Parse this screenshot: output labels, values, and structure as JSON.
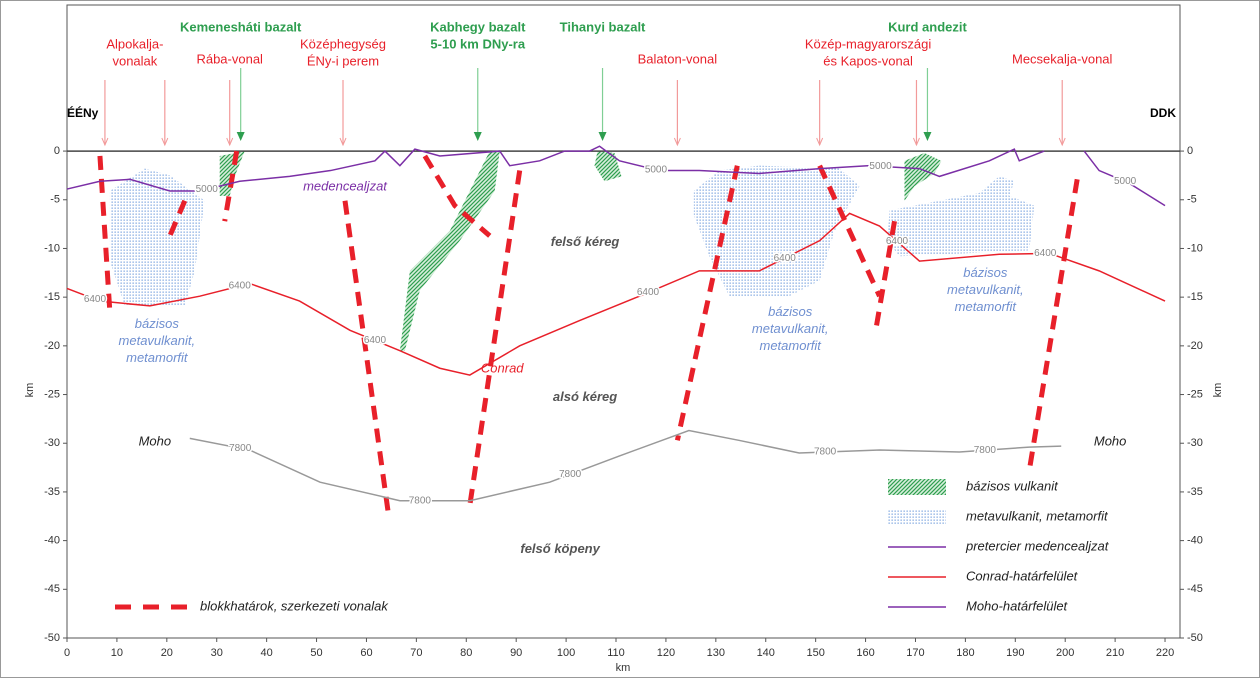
{
  "chart_data": {
    "type": "cross-section",
    "x_label": "km",
    "y_label": "km",
    "left_end": "ÉÉNy",
    "right_end": "DDK",
    "xlim": [
      0,
      223
    ],
    "ylim": [
      -50,
      15
    ],
    "xticks": [
      0,
      10,
      20,
      30,
      40,
      50,
      60,
      70,
      80,
      90,
      100,
      110,
      120,
      130,
      140,
      150,
      160,
      170,
      180,
      190,
      200,
      210,
      220
    ],
    "yticks": [
      0,
      -5,
      -10,
      -15,
      -20,
      -25,
      -30,
      -35,
      -40,
      -45,
      -50
    ],
    "structure_color": "#e8202a",
    "volcanic_color": "#2e9e4f",
    "structures": [
      {
        "text": [
          "Alpokalja-",
          "vonalak"
        ],
        "x": [
          7.6,
          19.6
        ]
      },
      {
        "text": [
          "Rába-vonal"
        ],
        "x": [
          32.6
        ]
      },
      {
        "text": [
          "Középhegység",
          "ÉNy-i perem"
        ],
        "x": [
          55.3
        ]
      },
      {
        "text": [
          "Balaton-vonal"
        ],
        "x": [
          122.3
        ]
      },
      {
        "text": [
          "Közép-magyarországi",
          "és Kapos-vonal"
        ],
        "x": [
          150.8,
          170.2
        ]
      },
      {
        "text": [
          "Mecsekalja-vonal"
        ],
        "x": [
          199.4
        ]
      }
    ],
    "volcanics": [
      {
        "text": [
          "Kemenesháti bazalt"
        ],
        "x": [
          34.8
        ]
      },
      {
        "text": [
          "Kabhegy bazalt",
          "5-10 km DNy-ra"
        ],
        "x": [
          82.3
        ]
      },
      {
        "text": [
          "Tihanyi bazalt"
        ],
        "x": [
          107.3
        ]
      },
      {
        "text": [
          "Kurd andezit"
        ],
        "x": [
          172.4
        ]
      }
    ],
    "regions": [
      {
        "name": "bázisos vulkanit",
        "color": "#2e9e4f",
        "pattern": "hatch",
        "polygons": [
          {
            "x": [
              30.6,
              35.6,
              33.6,
              32.6,
              30.6
            ],
            "y": [
              -0.5,
              0,
              -2.6,
              -4.6,
              -4.6
            ]
          },
          {
            "x": [
              66.7,
              68.7,
              76.7,
              84.7,
              86.7,
              85.7,
              78.7,
              70.7,
              67.7
            ],
            "y": [
              -20.5,
              -12.3,
              -8.2,
              0,
              0,
              -4.1,
              -9.2,
              -14.3,
              -20.5
            ]
          },
          {
            "x": [
              106.3,
              109.7,
              111.1,
              107.7,
              105.7
            ],
            "y": [
              0,
              -0.2,
              -2.6,
              -3.1,
              -1.5
            ]
          },
          {
            "x": [
              167.8,
              171.8,
              175.2,
              173.8,
              169.8,
              167.8
            ],
            "y": [
              -1,
              -0.2,
              -1,
              -2.3,
              -3.6,
              -5.1
            ]
          }
        ]
      },
      {
        "name": "metavulkanit, metamorfit",
        "color": "#7ea6e0",
        "pattern": "dots",
        "polygons": [
          {
            "x": [
              8.6,
              15.6,
              20.6,
              27.6,
              25.6,
              23.6,
              11.6,
              8.6
            ],
            "y": [
              -4.1,
              -1.8,
              -2.5,
              -5.1,
              -12.3,
              -15.9,
              -15.9,
              -11.3
            ]
          },
          {
            "x": [
              125.6,
              130.7,
              138.7,
              154.8,
              158.8,
              153.8,
              150.8,
              144.7,
              132.7,
              128.7,
              125.6
            ],
            "y": [
              -4.1,
              -2,
              -1.5,
              -1.8,
              -3.6,
              -8.2,
              -13.3,
              -14.9,
              -14.9,
              -10.8,
              -6.6
            ]
          },
          {
            "x": [
              164.8,
              182.8,
              186.8,
              189.8,
              188.8,
              193.8,
              192.8,
              166.8,
              164.4
            ],
            "y": [
              -6.1,
              -4.3,
              -2.6,
              -3.1,
              -4.6,
              -5.6,
              -10.2,
              -10.8,
              -9.2
            ]
          }
        ]
      }
    ],
    "series": [
      {
        "name": "pretercier medencealjzat",
        "color": "#7b2fa6",
        "x": [
          0,
          6.6,
          12.6,
          20.6,
          26.6,
          34.6,
          44.6,
          52.8,
          61.7,
          63.7,
          66.7,
          69.7,
          74.7,
          86.7,
          88.7,
          94.7,
          99.7,
          104.7,
          106.7,
          110.7,
          118.7,
          126.7,
          138.7,
          150.8,
          160.8,
          170.8,
          174.8,
          184.8,
          189.8,
          190.8,
          195.8,
          199.8,
          203.8,
          206.8,
          212.8,
          220
        ],
        "values": [
          -3.9,
          -3.1,
          -2.9,
          -4.1,
          -4.1,
          -3.1,
          -2.6,
          -2,
          -1,
          0,
          -1.5,
          0.2,
          -0.5,
          0,
          -1.5,
          -1,
          0,
          0,
          0.5,
          -1,
          -2,
          -2,
          -2.3,
          -1.8,
          -1.5,
          -1.8,
          -2.6,
          -1,
          0.2,
          -1,
          0,
          null,
          0,
          -2,
          -3.3,
          -5.6
        ],
        "labels": [
          {
            "x": 28,
            "text": 5000
          },
          {
            "x": 118,
            "text": 5000
          },
          {
            "x": 163,
            "text": 5000
          },
          {
            "x": 212,
            "text": 5000
          }
        ]
      },
      {
        "name": "Conrad-határfelület",
        "color": "#e8202a",
        "x": [
          0,
          6.6,
          16.6,
          26.6,
          36.6,
          46.6,
          56.7,
          66.7,
          74.7,
          80.7,
          90.7,
          102.7,
          114.7,
          126.7,
          138.7,
          150.8,
          156.8,
          162.8,
          170.8,
          186.8,
          196.8,
          206.8,
          220
        ],
        "values": [
          -14.1,
          -15.4,
          -15.9,
          -14.9,
          -13.6,
          -15.4,
          -18.4,
          -20.5,
          -22.3,
          -23,
          -20,
          -17.4,
          -14.9,
          -12.3,
          -12.3,
          -9.2,
          -6.4,
          -7.7,
          -11.3,
          -10.6,
          -10.5,
          -12.3,
          -15.4
        ],
        "labels": [
          {
            "x": 5.6,
            "text": 6400
          },
          {
            "x": 34.6,
            "text": 6400
          },
          {
            "x": 61.7,
            "text": 6400
          },
          {
            "x": 116.4,
            "text": 6400
          },
          {
            "x": 143.8,
            "text": 6400
          },
          {
            "x": 166.3,
            "text": 6400
          },
          {
            "x": 196,
            "text": 6400
          }
        ]
      },
      {
        "name": "Moho-határfelület",
        "color": "#999999",
        "legend_color": "#7b2fa6",
        "x": [
          24.6,
          36.6,
          50.7,
          66.7,
          80.7,
          96.7,
          110.7,
          124.6,
          134.6,
          146.7,
          162.8,
          178.8,
          192.8,
          199.2
        ],
        "values": [
          -29.5,
          -30.7,
          -34,
          -35.9,
          -35.9,
          -34,
          -31.3,
          -28.7,
          -29.7,
          -31,
          -30.7,
          -30.9,
          -30.4,
          -30.3
        ],
        "labels": [
          {
            "x": 34.7,
            "text": 7800
          },
          {
            "x": 70.7,
            "text": 7800
          },
          {
            "x": 100.8,
            "text": 7800
          },
          {
            "x": 151.9,
            "text": 7800
          },
          {
            "x": 183.9,
            "text": 7800
          }
        ]
      }
    ],
    "faults": {
      "name": "blokkhatárok, szerkezeti vonalak",
      "color": "#e8202a",
      "lines": [
        {
          "x": [
            6.6,
            8.6
          ],
          "y": [
            -0.5,
            -16.6
          ]
        },
        {
          "x": [
            23.6,
            20.2
          ],
          "y": [
            -5.1,
            -9.2
          ]
        },
        {
          "x": [
            34,
            31.6
          ],
          "y": [
            0,
            -7.2
          ]
        },
        {
          "x": [
            55.7,
            64.3
          ],
          "y": [
            -5.1,
            -36.9
          ]
        },
        {
          "x": [
            71.7,
            77.7,
            84.7
          ],
          "y": [
            -0.5,
            -5.6,
            -8.7
          ]
        },
        {
          "x": [
            90.7,
            80.7
          ],
          "y": [
            -2,
            -36.4
          ]
        },
        {
          "x": [
            134.3,
            122.3
          ],
          "y": [
            -1.5,
            -29.7
          ]
        },
        {
          "x": [
            150.8,
            162.8
          ],
          "y": [
            -1.5,
            -14.9
          ]
        },
        {
          "x": [
            165.8,
            162.2
          ],
          "y": [
            -7.2,
            -17.9
          ]
        },
        {
          "x": [
            202.4,
            192.8
          ],
          "y": [
            -2.9,
            -32.8
          ]
        }
      ]
    },
    "labels": [
      {
        "text": [
          "medencealjzat"
        ],
        "x": 55.7,
        "y": -3.7,
        "color": "#7b2fa6"
      },
      {
        "text": [
          "felső kéreg"
        ],
        "x": 103.8,
        "y": -9.4,
        "color": "#555555",
        "bold": true
      },
      {
        "text": [
          "alsó kéreg"
        ],
        "x": 103.8,
        "y": -25.3,
        "color": "#555555",
        "bold": true
      },
      {
        "text": [
          "felső köpeny"
        ],
        "x": 98.8,
        "y": -40.9,
        "color": "#555555",
        "bold": true
      },
      {
        "text": [
          "Conrad"
        ],
        "x": 87.2,
        "y": -22.4,
        "color": "#e8202a"
      },
      {
        "text": [
          "Moho"
        ],
        "x": 17.6,
        "y": -29.9,
        "color": "#222222"
      },
      {
        "text": [
          "Moho"
        ],
        "x": 209,
        "y": -29.9,
        "color": "#222222"
      },
      {
        "text": [
          "bázisos",
          "metavulkanit,",
          "metamorfit"
        ],
        "x": 18,
        "y": -17.8,
        "color": "#6f8fd0"
      },
      {
        "text": [
          "bázisos",
          "metavulkanit,",
          "metamorfit"
        ],
        "x": 144.9,
        "y": -16.6,
        "color": "#6f8fd0"
      },
      {
        "text": [
          "bázisos",
          "metavulkanit,",
          "metamorfit"
        ],
        "x": 184,
        "y": -12.6,
        "color": "#6f8fd0"
      }
    ]
  }
}
